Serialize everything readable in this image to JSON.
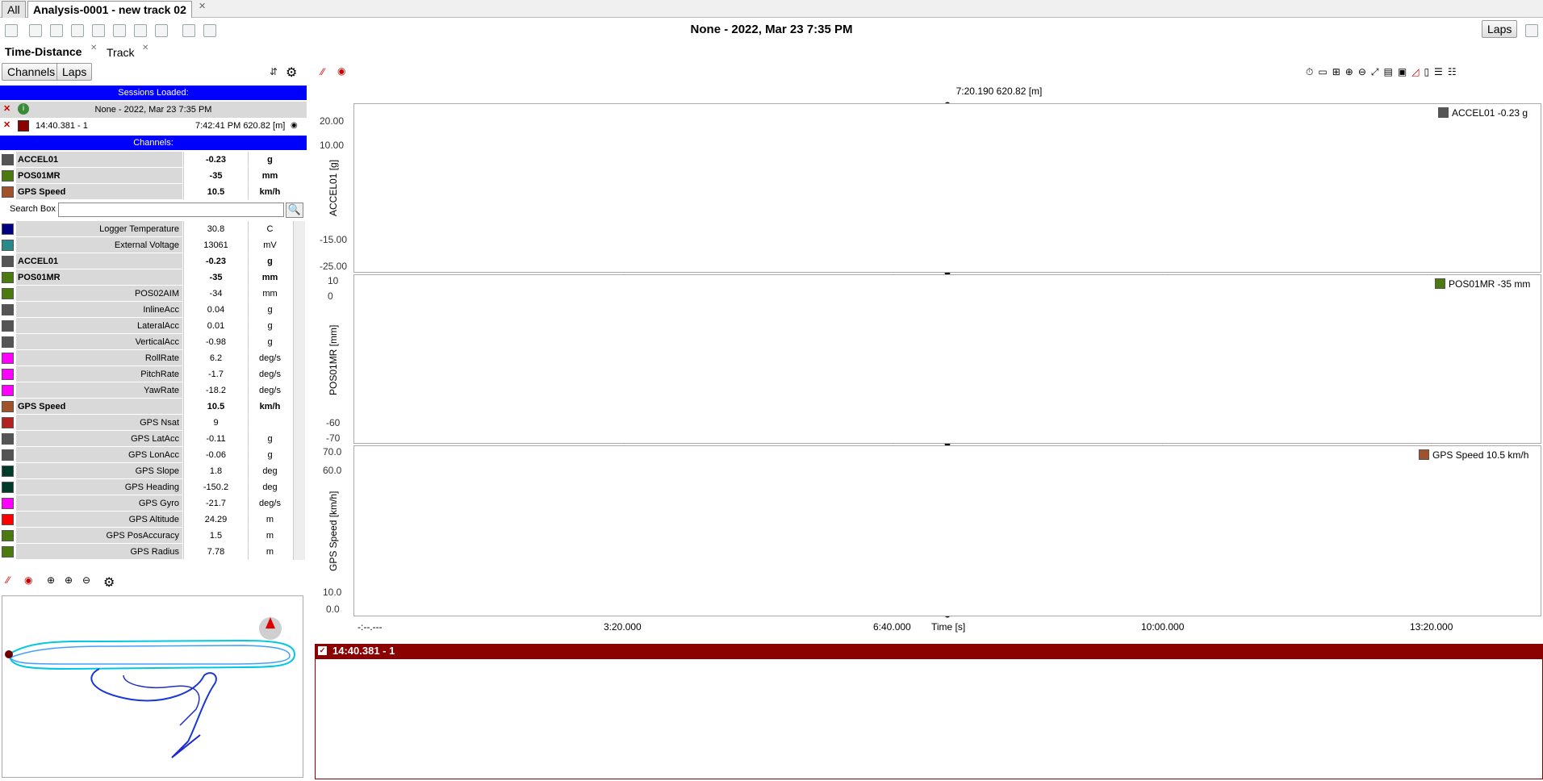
{
  "tabs": {
    "all": "All",
    "active": "Analysis-0001 - new track 02"
  },
  "title": "None - 2022, Mar 23 7:35 PM",
  "laps_button": "Laps",
  "subtabs": {
    "time_distance": "Time-Distance",
    "track": "Track"
  },
  "left_buttons": {
    "channels": "Channels",
    "laps": "Laps"
  },
  "sessions": {
    "header": "Sessions Loaded:",
    "session_title": "None - 2022, Mar 23 7:35 PM",
    "lap_name": "14:40.381 - 1",
    "lap_info": "7:42:41 PM 620.82 [m]"
  },
  "channels_header": "Channels:",
  "pinned": [
    {
      "name": "ACCEL01",
      "value": "-0.23",
      "unit": "g",
      "color": "#555555"
    },
    {
      "name": "POS01MR",
      "value": "-35",
      "unit": "mm",
      "color": "#4a7a10"
    },
    {
      "name": "GPS Speed",
      "value": "10.5",
      "unit": "km/h",
      "color": "#a0522d"
    }
  ],
  "search_label": "Search Box",
  "channel_list": [
    {
      "name": "Logger Temperature",
      "value": "30.8",
      "unit": "C",
      "color": "#000080",
      "bold": false
    },
    {
      "name": "External Voltage",
      "value": "13061",
      "unit": "mV",
      "color": "#2a8a8a",
      "bold": false
    },
    {
      "name": "ACCEL01",
      "value": "-0.23",
      "unit": "g",
      "color": "#555555",
      "bold": true
    },
    {
      "name": "POS01MR",
      "value": "-35",
      "unit": "mm",
      "color": "#4a7a10",
      "bold": true
    },
    {
      "name": "POS02AIM",
      "value": "-34",
      "unit": "mm",
      "color": "#4a7a10",
      "bold": false
    },
    {
      "name": "InlineAcc",
      "value": "0.04",
      "unit": "g",
      "color": "#555555",
      "bold": false
    },
    {
      "name": "LateralAcc",
      "value": "0.01",
      "unit": "g",
      "color": "#555555",
      "bold": false
    },
    {
      "name": "VerticalAcc",
      "value": "-0.98",
      "unit": "g",
      "color": "#555555",
      "bold": false
    },
    {
      "name": "RollRate",
      "value": "6.2",
      "unit": "deg/s",
      "color": "#ff00ff",
      "bold": false
    },
    {
      "name": "PitchRate",
      "value": "-1.7",
      "unit": "deg/s",
      "color": "#ff00ff",
      "bold": false
    },
    {
      "name": "YawRate",
      "value": "-18.2",
      "unit": "deg/s",
      "color": "#ff00ff",
      "bold": false
    },
    {
      "name": "GPS Speed",
      "value": "10.5",
      "unit": "km/h",
      "color": "#a0522d",
      "bold": true
    },
    {
      "name": "GPS Nsat",
      "value": "9",
      "unit": "",
      "color": "#b22222",
      "bold": false
    },
    {
      "name": "GPS LatAcc",
      "value": "-0.11",
      "unit": "g",
      "color": "#555555",
      "bold": false
    },
    {
      "name": "GPS LonAcc",
      "value": "-0.06",
      "unit": "g",
      "color": "#555555",
      "bold": false
    },
    {
      "name": "GPS Slope",
      "value": "1.8",
      "unit": "deg",
      "color": "#003b2a",
      "bold": false
    },
    {
      "name": "GPS Heading",
      "value": "-150.2",
      "unit": "deg",
      "color": "#003b2a",
      "bold": false
    },
    {
      "name": "GPS Gyro",
      "value": "-21.7",
      "unit": "deg/s",
      "color": "#ff00ff",
      "bold": false
    },
    {
      "name": "GPS Altitude",
      "value": "24.29",
      "unit": "m",
      "color": "#ff0000",
      "bold": false
    },
    {
      "name": "GPS PosAccuracy",
      "value": "1.5",
      "unit": "m",
      "color": "#4a7a10",
      "bold": false
    },
    {
      "name": "GPS Radius",
      "value": "7.78",
      "unit": "m",
      "color": "#4a7a10",
      "bold": false
    }
  ],
  "cursor_label": "7:20.190 620.82 [m]",
  "plots": {
    "accel": {
      "ylabel": "ACCEL01 [g]",
      "legend": "ACCEL01 -0.23 g",
      "ticks": [
        "20.00",
        "10.00",
        "-15.00",
        "-25.00"
      ]
    },
    "pos": {
      "ylabel": "POS01MR [mm]",
      "legend": "POS01MR -35 mm",
      "ticks": [
        "10",
        "0",
        "-60",
        "-70"
      ]
    },
    "speed": {
      "ylabel": "GPS Speed [km/h]",
      "legend": "GPS Speed 10.5 km/h",
      "ticks": [
        "70.0",
        "60.0",
        "10.0",
        "0.0"
      ]
    }
  },
  "xaxis": {
    "ticks": [
      "-:--.---",
      "3:20.000",
      "6:40.000",
      "10:00.000",
      "13:20.000"
    ],
    "label": "Time [s]"
  },
  "bottom_title": "14:40.381 - 1",
  "colors": {
    "accel": "#555555",
    "pos": "#4a7a10",
    "speed": "#a0522d",
    "cursor": "#000000",
    "header_blue": "#0000ff",
    "session_red": "#8b0000"
  }
}
